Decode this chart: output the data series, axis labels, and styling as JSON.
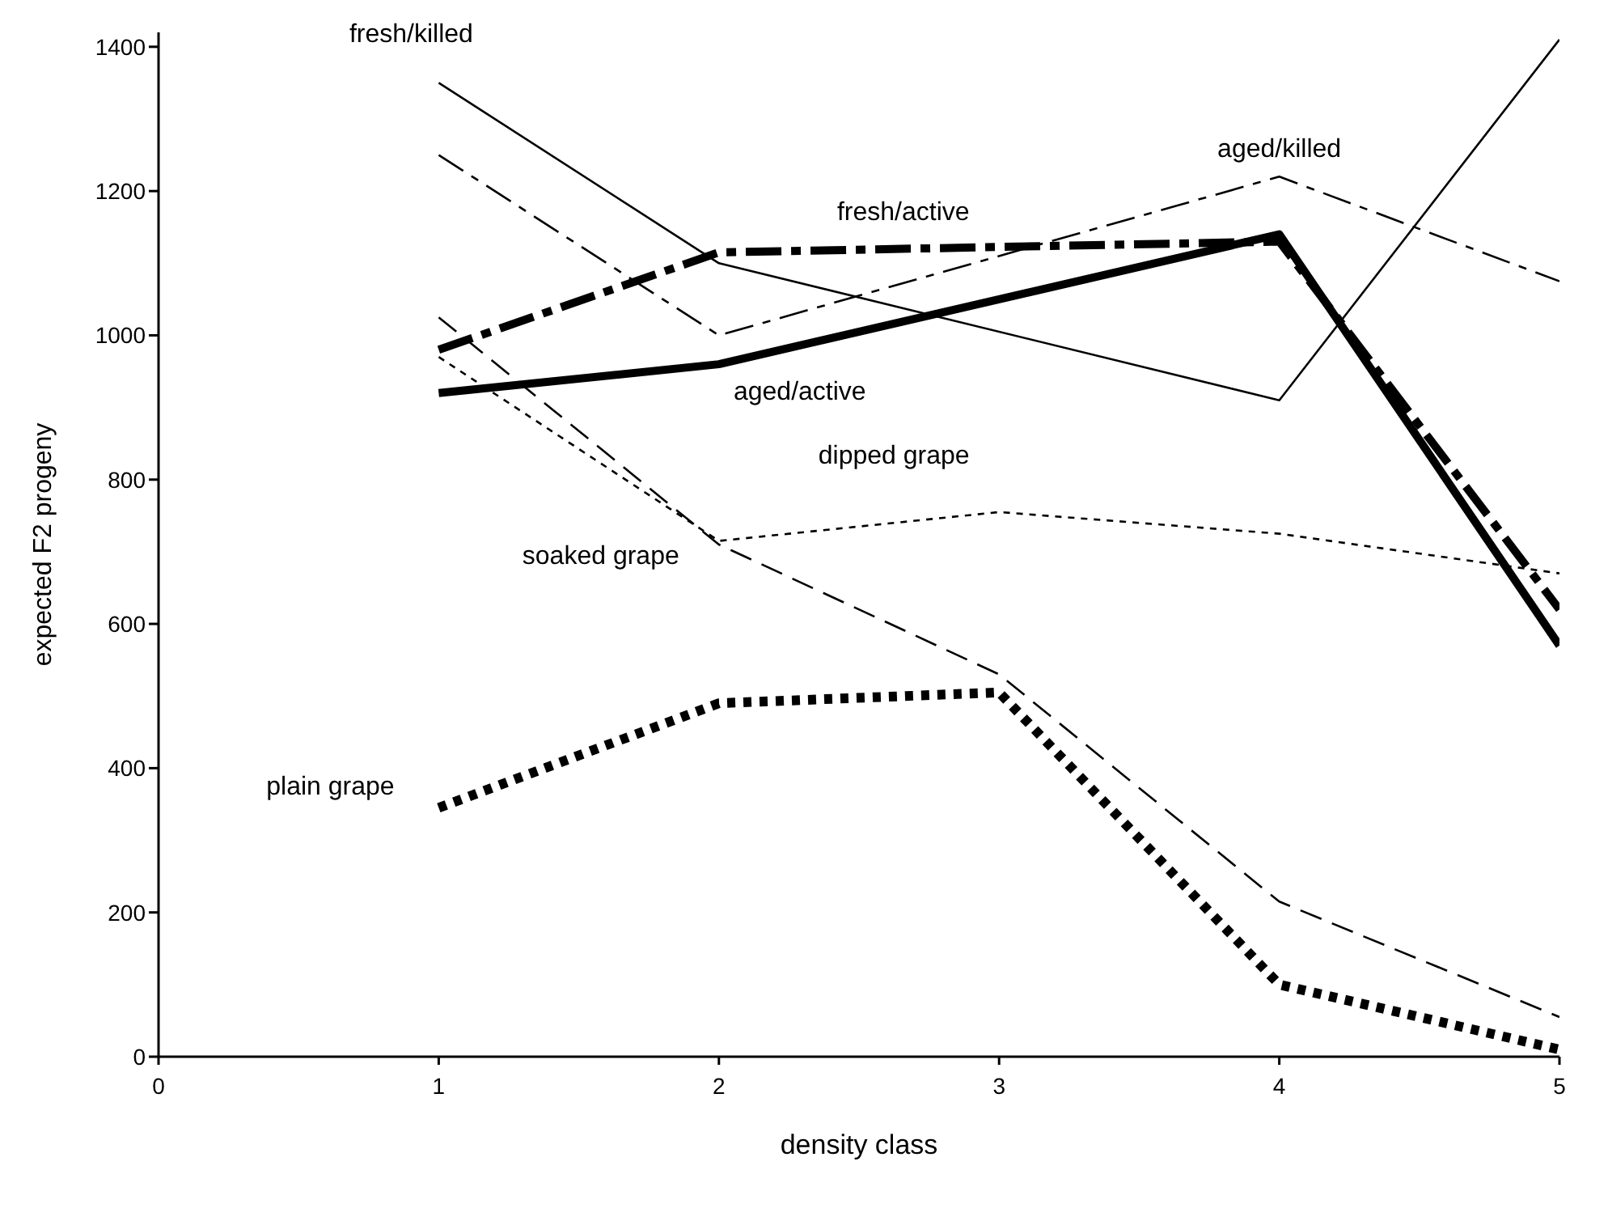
{
  "chart_data": {
    "type": "line",
    "xlabel": "density class",
    "ylabel": "expected F2 progeny",
    "xlim": [
      0,
      5
    ],
    "xticks": [
      0,
      1,
      2,
      3,
      4,
      5
    ],
    "ylim": [
      0,
      1420
    ],
    "yticks": [
      0,
      200,
      400,
      600,
      800,
      1000,
      1200,
      1400
    ],
    "grid": false,
    "legend": false,
    "marker": "none",
    "series": [
      {
        "name": "fresh/killed",
        "color": "#000000",
        "line_style": "solid",
        "x": [
          1,
          2,
          4,
          5
        ],
        "values": [
          1350,
          1100,
          910,
          1410
        ]
      },
      {
        "name": "aged/killed",
        "color": "#000000",
        "line_style": "dashed",
        "x": [
          1,
          2,
          4,
          5
        ],
        "values": [
          1250,
          1000,
          1220,
          1075
        ]
      },
      {
        "name": "fresh/active",
        "color": "#000000",
        "line_style": "dashed",
        "x": [
          1,
          2,
          4,
          5
        ],
        "values": [
          980,
          1115,
          1130,
          620
        ]
      },
      {
        "name": "aged/active",
        "color": "#000000",
        "line_style": "solid",
        "x": [
          1,
          2,
          4,
          5
        ],
        "values": [
          920,
          960,
          1140,
          570
        ]
      },
      {
        "name": "dipped grape",
        "color": "#000000",
        "line_style": "dotted",
        "x": [
          1,
          2,
          3,
          4,
          5
        ],
        "values": [
          970,
          715,
          755,
          725,
          670
        ]
      },
      {
        "name": "soaked grape",
        "color": "#000000",
        "line_style": "dashed",
        "x": [
          1,
          2,
          3,
          4,
          5
        ],
        "values": [
          1025,
          710,
          530,
          215,
          55
        ]
      },
      {
        "name": "plain grape",
        "color": "#000000",
        "line_style": "dotted",
        "x": [
          1,
          2,
          3,
          4,
          5
        ],
        "values": [
          345,
          490,
          505,
          100,
          10
        ]
      }
    ]
  }
}
